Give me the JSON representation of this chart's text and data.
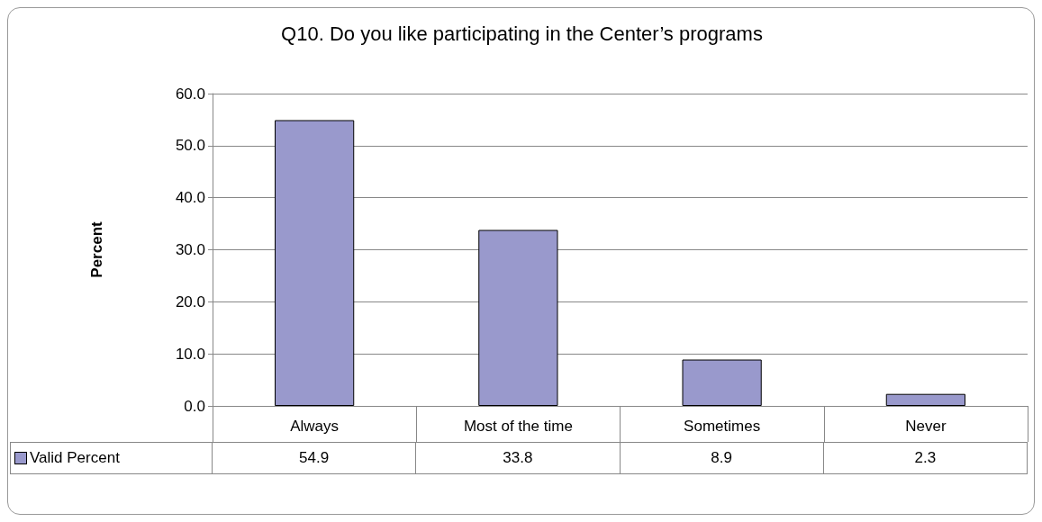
{
  "chart_data": {
    "type": "bar",
    "title": "Q10. Do you like participating in the Center’s programs",
    "ylabel": "Percent",
    "categories": [
      "Always",
      "Most of the time",
      "Sometimes",
      "Never"
    ],
    "series": [
      {
        "name": "Valid Percent",
        "color": "#9999cc",
        "values": [
          54.9,
          33.8,
          8.9,
          2.3
        ]
      }
    ],
    "ylim": [
      0,
      60
    ],
    "yticks": [
      {
        "value": 0,
        "label": "0.0"
      },
      {
        "value": 10,
        "label": "10.0"
      },
      {
        "value": 20,
        "label": "20.0"
      },
      {
        "value": 30,
        "label": "30.0"
      },
      {
        "value": 40,
        "label": "40.0"
      },
      {
        "value": 50,
        "label": "50.0"
      },
      {
        "value": 60,
        "label": "60.0"
      }
    ],
    "grid": "y",
    "legend": "bottom",
    "data_labels": true
  }
}
